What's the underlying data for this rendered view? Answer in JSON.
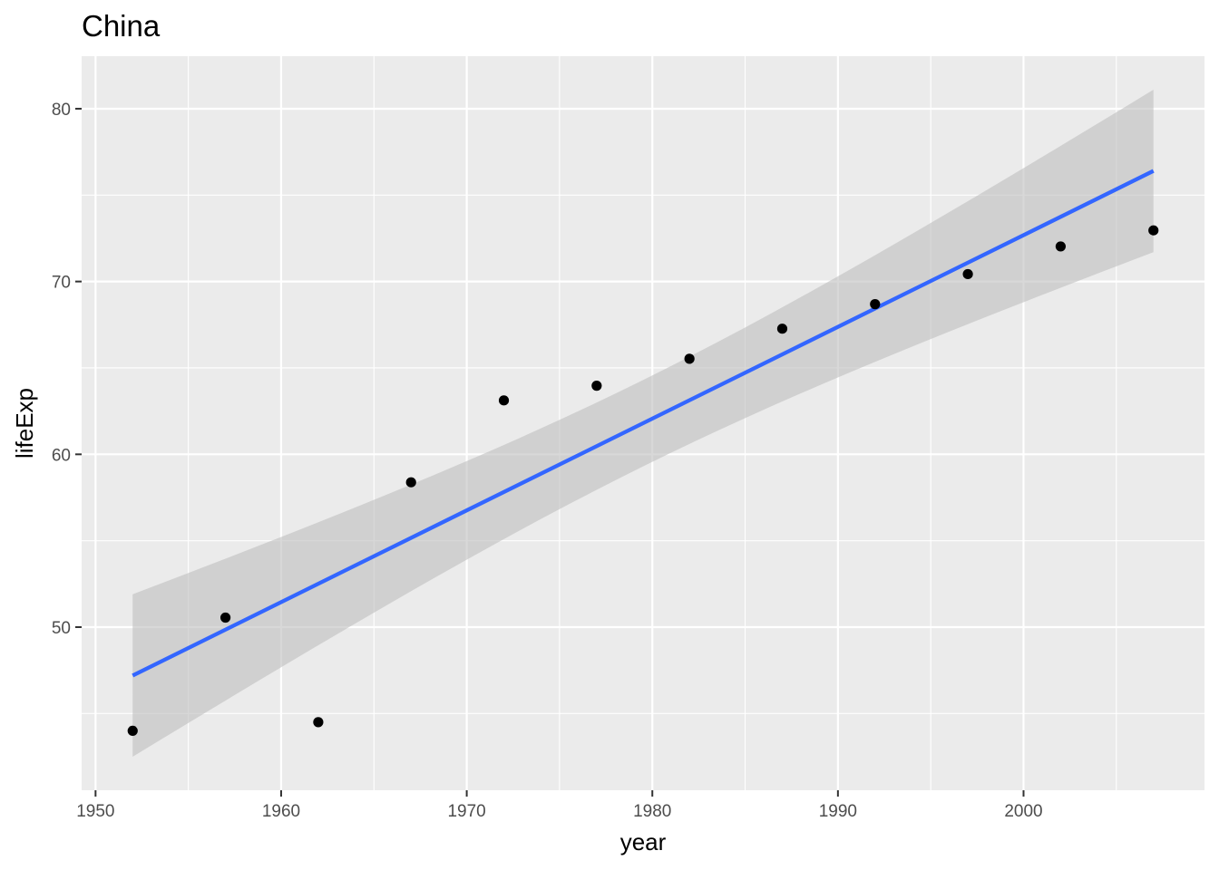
{
  "chart_data": {
    "type": "scatter",
    "title": "China",
    "xlabel": "year",
    "ylabel": "lifeExp",
    "xlim": [
      1949.25,
      2009.75
    ],
    "ylim": [
      40.56,
      83.04
    ],
    "x_ticks": [
      1950,
      1960,
      1970,
      1980,
      1990,
      2000
    ],
    "x_minor_ticks": [
      1955,
      1965,
      1975,
      1985,
      1995,
      2005
    ],
    "y_ticks": [
      50,
      60,
      70,
      80
    ],
    "y_minor_ticks": [
      45,
      55,
      65,
      75
    ],
    "grid": true,
    "legend": "none",
    "colors": {
      "panel": "#ebebeb",
      "grid": "#ffffff",
      "points": "#000000",
      "fit_line": "#3366ff",
      "ribbon": "#bebebe"
    },
    "series": [
      {
        "kind": "points",
        "x": [
          1952,
          1957,
          1962,
          1967,
          1972,
          1977,
          1982,
          1987,
          1992,
          1997,
          2002,
          2007
        ],
        "y": [
          44.0,
          50.55,
          44.5,
          58.38,
          63.12,
          63.97,
          65.53,
          67.27,
          68.69,
          70.43,
          72.03,
          72.96
        ]
      },
      {
        "kind": "smooth",
        "method": "lm",
        "x": [
          1952,
          2007
        ],
        "y": [
          47.2,
          76.4
        ],
        "ci_lower": [
          42.5,
          71.7
        ],
        "ci_upper": [
          51.9,
          81.1
        ]
      }
    ]
  }
}
